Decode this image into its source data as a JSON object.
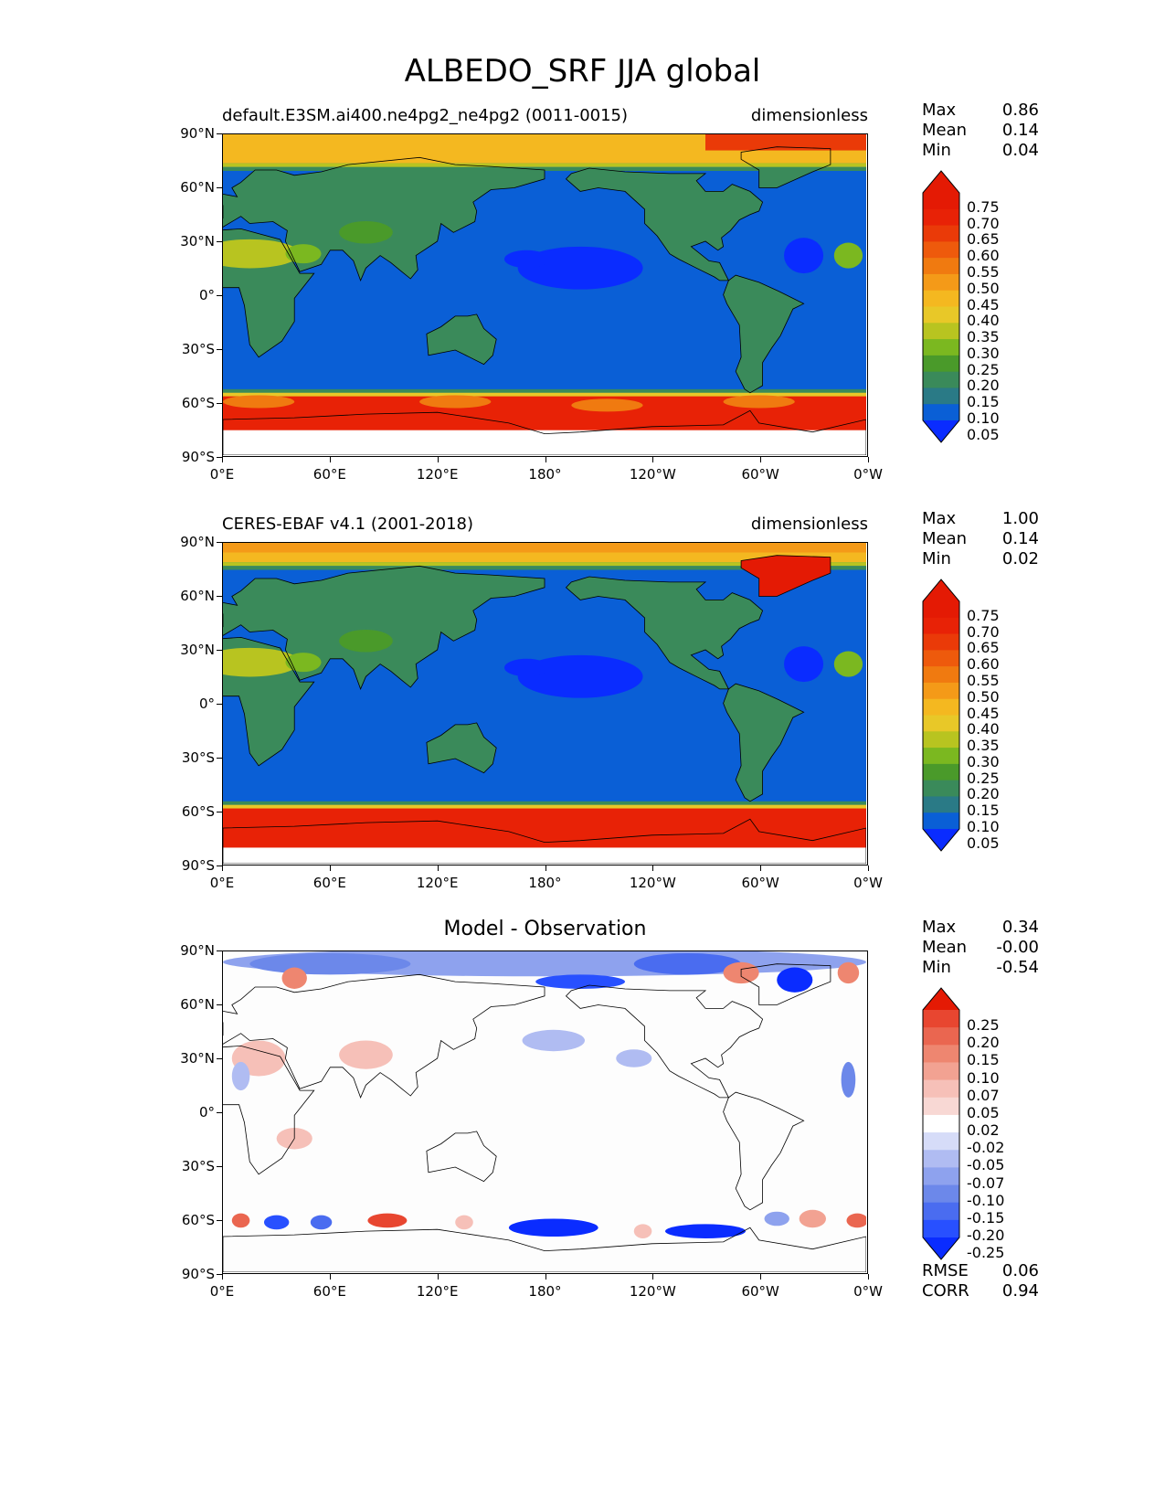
{
  "title": "ALBEDO_SRF JJA global",
  "axis": {
    "y_ticks": [
      "90°N",
      "60°N",
      "30°N",
      "0°",
      "30°S",
      "60°S",
      "90°S"
    ],
    "x_ticks": [
      "0°E",
      "60°E",
      "120°E",
      "180°",
      "120°W",
      "60°W",
      "0°W"
    ]
  },
  "panels": [
    {
      "left_title": "default.E3SM.ai400.ne4pg2_ne4pg2 (0011-0015)",
      "right_title": "dimensionless",
      "center_title": "",
      "stats": [
        {
          "label": "Max",
          "value": "0.86"
        },
        {
          "label": "Mean",
          "value": "0.14"
        },
        {
          "label": "Min",
          "value": "0.04"
        }
      ],
      "colorbar_labels": [
        "0.75",
        "0.70",
        "0.65",
        "0.60",
        "0.55",
        "0.50",
        "0.45",
        "0.40",
        "0.35",
        "0.30",
        "0.25",
        "0.20",
        "0.15",
        "0.10",
        "0.05"
      ]
    },
    {
      "left_title": "CERES-EBAF v4.1 (2001-2018)",
      "right_title": "dimensionless",
      "center_title": "",
      "stats": [
        {
          "label": "Max",
          "value": "1.00"
        },
        {
          "label": "Mean",
          "value": "0.14"
        },
        {
          "label": "Min",
          "value": "0.02"
        }
      ],
      "colorbar_labels": [
        "0.75",
        "0.70",
        "0.65",
        "0.60",
        "0.55",
        "0.50",
        "0.45",
        "0.40",
        "0.35",
        "0.30",
        "0.25",
        "0.20",
        "0.15",
        "0.10",
        "0.05"
      ]
    },
    {
      "left_title": "",
      "right_title": "",
      "center_title": "Model - Observation",
      "stats": [
        {
          "label": "Max",
          "value": "0.34"
        },
        {
          "label": "Mean",
          "value": "-0.00"
        },
        {
          "label": "Min",
          "value": "-0.54"
        }
      ],
      "colorbar_labels": [
        "0.25",
        "0.20",
        "0.15",
        "0.10",
        "0.07",
        "0.05",
        "0.02",
        "-0.02",
        "-0.05",
        "-0.07",
        "-0.10",
        "-0.15",
        "-0.20",
        "-0.25"
      ],
      "metrics": [
        {
          "label": "RMSE",
          "value": "0.06"
        },
        {
          "label": "CORR",
          "value": "0.94"
        }
      ]
    }
  ],
  "colors": {
    "albedo_scale": [
      "#0a2cff",
      "#0a5fd6",
      "#2a7a86",
      "#3a8a5a",
      "#4a9a2a",
      "#7bb820",
      "#b8c420",
      "#e8c828",
      "#f4b820",
      "#f49a18",
      "#f07a10",
      "#ee5a0c",
      "#ea3a08",
      "#e82206",
      "#e41a04",
      "#e41a04"
    ],
    "diff_scale": [
      "#0a2cff",
      "#2850ff",
      "#4a6cf0",
      "#6c88ea",
      "#8ea2ee",
      "#b0bcf2",
      "#d6dcf8",
      "#ffffff",
      "#f8d8d4",
      "#f6c0b8",
      "#f2a292",
      "#ee8670",
      "#ea6650",
      "#e84630",
      "#e41a04"
    ]
  }
}
